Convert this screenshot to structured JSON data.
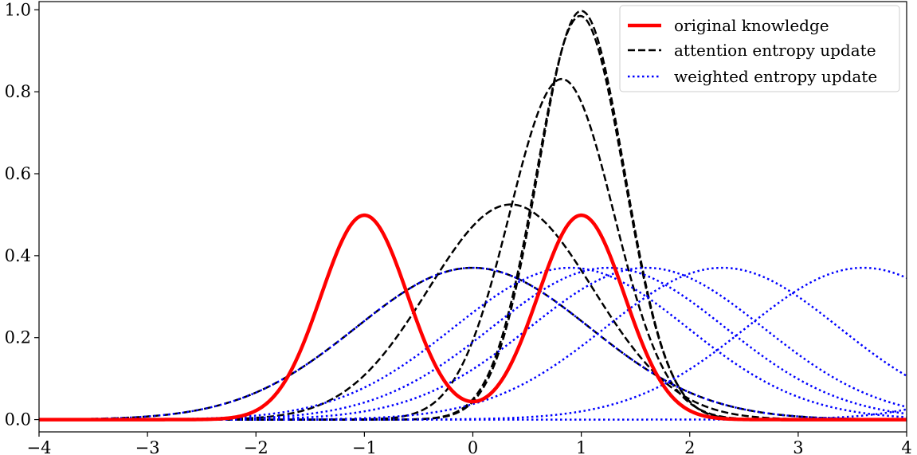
{
  "chart_data": {
    "type": "line",
    "title": "",
    "xlabel": "",
    "ylabel": "",
    "xlim": [
      -4,
      4
    ],
    "ylim": [
      -0.03,
      1.02
    ],
    "xticks": [
      -4,
      -3,
      -2,
      -1,
      0,
      1,
      2,
      3,
      4
    ],
    "xtick_labels": [
      "−4",
      "−3",
      "−2",
      "−1",
      "0",
      "1",
      "2",
      "3",
      "4"
    ],
    "yticks": [
      0.0,
      0.2,
      0.4,
      0.6,
      0.8,
      1.0
    ],
    "ytick_labels": [
      "0.0",
      "0.2",
      "0.4",
      "0.6",
      "0.8",
      "1.0"
    ],
    "grid": false,
    "legend": {
      "position": "top-right",
      "entries": [
        {
          "label": "original knowledge",
          "color": "#ff0000",
          "style": "solid"
        },
        {
          "label": "attention entropy update",
          "color": "#000000",
          "style": "dashed"
        },
        {
          "label": "weighted entropy update",
          "color": "#0000ff",
          "style": "dotted"
        }
      ]
    },
    "series": [
      {
        "name": "original knowledge",
        "kind": "mixture",
        "color": "#ff0000",
        "style": "solid",
        "components": [
          {
            "mean": -1,
            "sd": 0.4,
            "weight": 0.5
          },
          {
            "mean": 1,
            "sd": 0.4,
            "weight": 0.5
          }
        ]
      },
      {
        "name": "attention entropy update",
        "kind": "gaussian",
        "color": "#000000",
        "style": "dashed",
        "mean": 0.0,
        "sd": 1.077
      },
      {
        "name": "attention entropy update",
        "kind": "gaussian",
        "color": "#000000",
        "style": "dashed",
        "mean": 0.35,
        "sd": 0.76
      },
      {
        "name": "attention entropy update",
        "kind": "gaussian",
        "color": "#000000",
        "style": "dashed",
        "mean": 0.82,
        "sd": 0.48
      },
      {
        "name": "attention entropy update",
        "kind": "gaussian",
        "color": "#000000",
        "style": "dashed",
        "mean": 0.99,
        "sd": 0.405
      },
      {
        "name": "attention entropy update",
        "kind": "gaussian",
        "color": "#000000",
        "style": "dashed",
        "mean": 1.0,
        "sd": 0.4
      },
      {
        "name": "weighted entropy update",
        "kind": "gaussian",
        "color": "#0000ff",
        "style": "dotted",
        "mean": 0.0,
        "sd": 1.077
      },
      {
        "name": "weighted entropy update",
        "kind": "gaussian",
        "color": "#0000ff",
        "style": "dotted",
        "mean": 0.9,
        "sd": 1.077
      },
      {
        "name": "weighted entropy update",
        "kind": "gaussian",
        "color": "#0000ff",
        "style": "dotted",
        "mean": 1.25,
        "sd": 1.077
      },
      {
        "name": "weighted entropy update",
        "kind": "gaussian",
        "color": "#0000ff",
        "style": "dotted",
        "mean": 1.6,
        "sd": 1.077
      },
      {
        "name": "weighted entropy update",
        "kind": "gaussian",
        "color": "#0000ff",
        "style": "dotted",
        "mean": 2.3,
        "sd": 1.077
      },
      {
        "name": "weighted entropy update",
        "kind": "gaussian",
        "color": "#0000ff",
        "style": "dotted",
        "mean": 3.6,
        "sd": 1.077
      },
      {
        "name": "weighted entropy update",
        "kind": "gaussian",
        "color": "#0000ff",
        "style": "dotted",
        "mean": 6.5,
        "sd": 1.077
      }
    ]
  }
}
